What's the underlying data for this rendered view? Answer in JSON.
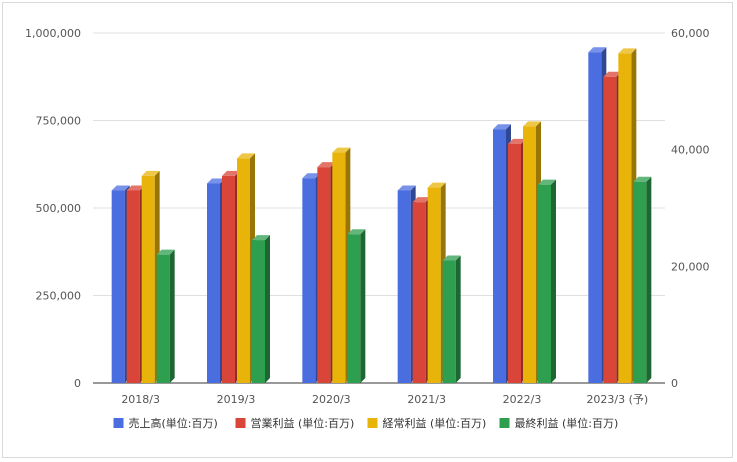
{
  "chart_data": {
    "type": "bar",
    "style": "3d-grouped-bar",
    "categories": [
      "2018/3",
      "2019/3",
      "2020/3",
      "2021/3",
      "2022/3",
      "2023/3 (予)"
    ],
    "series": [
      {
        "name": "売上高(単位:百万)",
        "axis": "left",
        "color": "#4a6de0",
        "values": [
          550000,
          570000,
          585000,
          550000,
          725000,
          945000
        ]
      },
      {
        "name": "営業利益 (単位:百万)",
        "axis": "right",
        "color": "#d94538",
        "values": [
          33000,
          35500,
          37000,
          31000,
          41000,
          52500
        ]
      },
      {
        "name": "経常利益 (単位:百万)",
        "axis": "right",
        "color": "#e8b40a",
        "values": [
          35500,
          38500,
          39500,
          33500,
          44000,
          56500
        ]
      },
      {
        "name": "最終利益 (単位:百万)",
        "axis": "right",
        "color": "#2e9e4f",
        "values": [
          22000,
          24500,
          25500,
          21000,
          34000,
          34500
        ]
      }
    ],
    "y_left": {
      "min": 0,
      "max": 1000000,
      "ticks": [
        "0",
        "250,000",
        "500,000",
        "750,000",
        "1,000,000"
      ]
    },
    "y_right": {
      "min": 0,
      "max": 60000,
      "ticks": [
        "0",
        "20,000",
        "40,000",
        "60,000"
      ]
    },
    "grid": true,
    "legend_position": "bottom"
  }
}
